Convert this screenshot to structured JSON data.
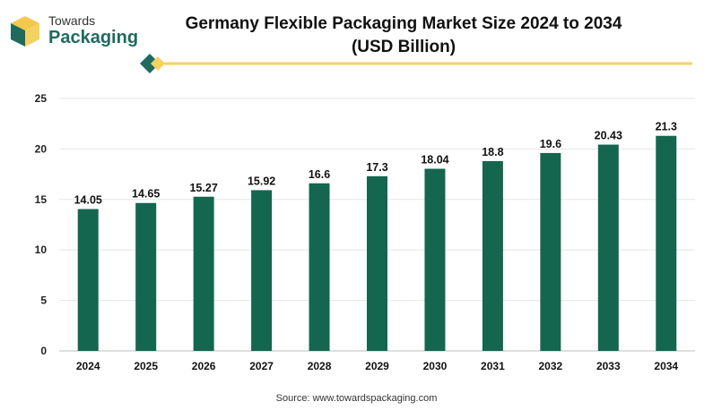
{
  "logo": {
    "line1": "Towards",
    "line2": "Packaging"
  },
  "title": {
    "line1": "Germany Flexible Packaging Market Size 2024 to 2034",
    "line2": "(USD Billion)"
  },
  "source": "Source: www.towardspackaging.com",
  "colors": {
    "bar": "#14664f",
    "accent": "#f3d261",
    "brand_green": "#1e6b5e",
    "grid": "#e6e6e6"
  },
  "chart_data": {
    "type": "bar",
    "title": "Germany Flexible Packaging Market Size 2024 to 2034",
    "subtitle": "(USD Billion)",
    "categories": [
      "2024",
      "2025",
      "2026",
      "2027",
      "2028",
      "2029",
      "2030",
      "2031",
      "2032",
      "2033",
      "2034"
    ],
    "values": [
      14.05,
      14.65,
      15.27,
      15.92,
      16.6,
      17.3,
      18.04,
      18.8,
      19.6,
      20.43,
      21.3
    ],
    "data_labels": [
      "14.05",
      "14.65",
      "15.27",
      "15.92",
      "16.6",
      "17.3",
      "18.04",
      "18.8",
      "19.6",
      "20.43",
      "21.3"
    ],
    "y_ticks": [
      0,
      5,
      10,
      15,
      20,
      25
    ],
    "ylim": [
      0,
      25
    ],
    "grid": true,
    "legend": "none"
  }
}
